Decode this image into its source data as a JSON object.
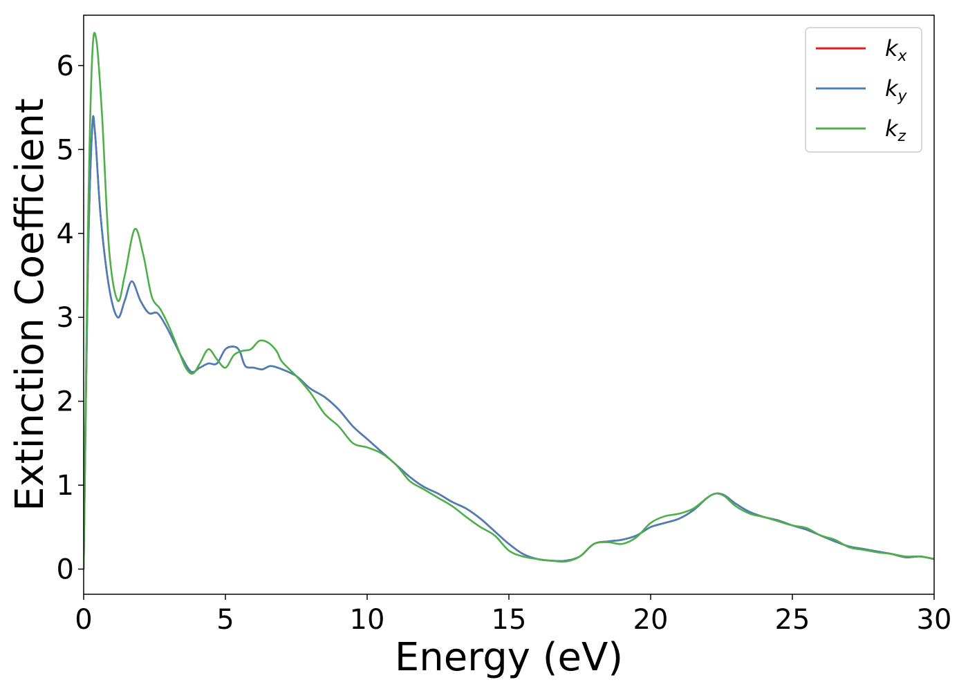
{
  "chart_data": {
    "type": "line",
    "title": "",
    "xlabel": "Energy (eV)",
    "ylabel": "Extinction Coefficient",
    "xlim": [
      0,
      30
    ],
    "ylim": [
      -0.3,
      6.6
    ],
    "xticks": [
      0,
      5,
      10,
      15,
      20,
      25,
      30
    ],
    "yticks": [
      0,
      1,
      2,
      3,
      4,
      5,
      6
    ],
    "grid": false,
    "legend_position": "top-right",
    "series": [
      {
        "name": "kx",
        "name_base": "k",
        "name_sub": "x",
        "color": "#e41a1c",
        "x": [
          0,
          0.15,
          0.3,
          0.4,
          0.6,
          0.9,
          1.2,
          1.45,
          1.7,
          2.0,
          2.3,
          2.6,
          2.9,
          3.2,
          3.5,
          3.8,
          4.1,
          4.4,
          4.7,
          5.0,
          5.3,
          5.5,
          5.7,
          6.0,
          6.3,
          6.6,
          7.0,
          7.5,
          8.0,
          8.5,
          9.0,
          9.5,
          10.0,
          10.5,
          11.0,
          11.5,
          12.0,
          12.5,
          13.0,
          13.5,
          14.0,
          14.5,
          15.0,
          15.5,
          16.0,
          16.5,
          17.0,
          17.5,
          18.0,
          18.5,
          19.0,
          19.5,
          20.0,
          20.5,
          21.0,
          21.5,
          22.0,
          22.3,
          22.6,
          23.0,
          23.5,
          24.0,
          24.5,
          25.0,
          25.5,
          26.0,
          26.5,
          27.0,
          27.5,
          28.0,
          28.5,
          29.0,
          29.5,
          30.0
        ],
        "y": [
          0,
          3.6,
          5.25,
          5.2,
          4.2,
          3.35,
          3.0,
          3.2,
          3.43,
          3.2,
          3.05,
          3.05,
          2.9,
          2.7,
          2.5,
          2.35,
          2.4,
          2.45,
          2.45,
          2.62,
          2.65,
          2.6,
          2.42,
          2.4,
          2.38,
          2.42,
          2.38,
          2.3,
          2.15,
          2.05,
          1.9,
          1.7,
          1.55,
          1.4,
          1.25,
          1.1,
          0.98,
          0.9,
          0.8,
          0.72,
          0.6,
          0.45,
          0.3,
          0.18,
          0.12,
          0.1,
          0.1,
          0.15,
          0.3,
          0.33,
          0.35,
          0.4,
          0.5,
          0.55,
          0.6,
          0.7,
          0.85,
          0.9,
          0.88,
          0.78,
          0.68,
          0.62,
          0.58,
          0.52,
          0.47,
          0.4,
          0.33,
          0.27,
          0.24,
          0.21,
          0.18,
          0.14,
          0.15,
          0.12
        ]
      },
      {
        "name": "ky",
        "name_base": "k",
        "name_sub": "y",
        "color": "#4a7eb8",
        "x": [
          0,
          0.15,
          0.3,
          0.4,
          0.6,
          0.9,
          1.2,
          1.45,
          1.7,
          2.0,
          2.3,
          2.6,
          2.9,
          3.2,
          3.5,
          3.8,
          4.1,
          4.4,
          4.7,
          5.0,
          5.3,
          5.5,
          5.7,
          6.0,
          6.3,
          6.6,
          7.0,
          7.5,
          8.0,
          8.5,
          9.0,
          9.5,
          10.0,
          10.5,
          11.0,
          11.5,
          12.0,
          12.5,
          13.0,
          13.5,
          14.0,
          14.5,
          15.0,
          15.5,
          16.0,
          16.5,
          17.0,
          17.5,
          18.0,
          18.5,
          19.0,
          19.5,
          20.0,
          20.5,
          21.0,
          21.5,
          22.0,
          22.3,
          22.6,
          23.0,
          23.5,
          24.0,
          24.5,
          25.0,
          25.5,
          26.0,
          26.5,
          27.0,
          27.5,
          28.0,
          28.5,
          29.0,
          29.5,
          30.0
        ],
        "y": [
          0,
          3.6,
          5.25,
          5.2,
          4.2,
          3.35,
          3.0,
          3.2,
          3.43,
          3.2,
          3.05,
          3.05,
          2.9,
          2.7,
          2.5,
          2.35,
          2.4,
          2.45,
          2.45,
          2.62,
          2.65,
          2.6,
          2.42,
          2.4,
          2.38,
          2.42,
          2.38,
          2.3,
          2.15,
          2.05,
          1.9,
          1.7,
          1.55,
          1.4,
          1.25,
          1.1,
          0.98,
          0.9,
          0.8,
          0.72,
          0.6,
          0.45,
          0.3,
          0.18,
          0.12,
          0.1,
          0.1,
          0.15,
          0.3,
          0.33,
          0.35,
          0.4,
          0.5,
          0.55,
          0.6,
          0.7,
          0.85,
          0.9,
          0.88,
          0.78,
          0.68,
          0.62,
          0.58,
          0.52,
          0.47,
          0.4,
          0.33,
          0.27,
          0.24,
          0.21,
          0.18,
          0.14,
          0.15,
          0.12
        ]
      },
      {
        "name": "kz",
        "name_base": "k",
        "name_sub": "z",
        "color": "#4daf4a",
        "x": [
          0,
          0.15,
          0.3,
          0.45,
          0.65,
          0.9,
          1.2,
          1.45,
          1.8,
          2.1,
          2.4,
          2.7,
          3.0,
          3.3,
          3.6,
          3.85,
          4.1,
          4.4,
          4.7,
          5.0,
          5.3,
          5.6,
          5.9,
          6.2,
          6.5,
          6.8,
          7.0,
          7.5,
          8.0,
          8.5,
          9.0,
          9.5,
          10.0,
          10.5,
          11.0,
          11.5,
          12.0,
          12.5,
          13.0,
          13.5,
          14.0,
          14.5,
          15.0,
          15.5,
          16.0,
          16.5,
          17.0,
          17.5,
          18.0,
          18.5,
          19.0,
          19.5,
          20.0,
          20.5,
          21.0,
          21.5,
          22.0,
          22.3,
          22.6,
          23.0,
          23.5,
          24.0,
          24.5,
          25.0,
          25.5,
          26.0,
          26.5,
          27.0,
          27.5,
          28.0,
          28.5,
          29.0,
          29.5,
          30.0
        ],
        "y": [
          0,
          4.0,
          6.1,
          6.3,
          5.4,
          3.8,
          3.2,
          3.5,
          4.05,
          3.75,
          3.25,
          3.1,
          2.9,
          2.65,
          2.4,
          2.33,
          2.45,
          2.62,
          2.5,
          2.4,
          2.55,
          2.6,
          2.62,
          2.72,
          2.7,
          2.6,
          2.47,
          2.3,
          2.1,
          1.85,
          1.7,
          1.5,
          1.45,
          1.38,
          1.25,
          1.05,
          0.95,
          0.85,
          0.75,
          0.62,
          0.5,
          0.4,
          0.22,
          0.15,
          0.12,
          0.1,
          0.09,
          0.15,
          0.3,
          0.32,
          0.3,
          0.38,
          0.55,
          0.63,
          0.66,
          0.72,
          0.85,
          0.9,
          0.87,
          0.75,
          0.66,
          0.62,
          0.57,
          0.52,
          0.49,
          0.4,
          0.35,
          0.26,
          0.23,
          0.2,
          0.18,
          0.15,
          0.15,
          0.12
        ]
      }
    ]
  }
}
